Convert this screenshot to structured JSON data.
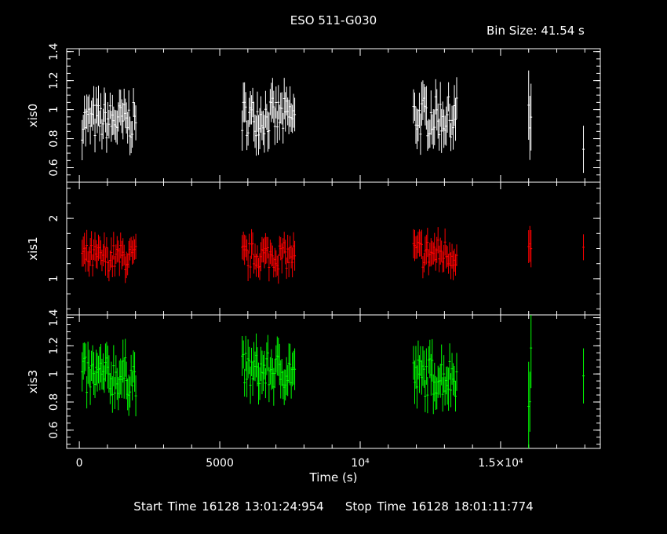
{
  "title": "ESO 511-G030",
  "bin_size": "Bin Size: 41.54 s",
  "start_time": "Start Time 16128 13:01:24:954",
  "stop_time": "Stop Time 16128 18:01:11:774",
  "colors": {
    "background": "#000000",
    "axes": "#ffffff",
    "xis0": "#ffffff",
    "xis1": "#ff0000",
    "xis3": "#00ff00"
  },
  "chart_data": {
    "type": "scatter",
    "xlabel": "Time (s)",
    "xlim": [
      -450,
      18550
    ],
    "x_ticks": [
      {
        "value": 0,
        "label": "0"
      },
      {
        "value": 5000,
        "label": "5000"
      },
      {
        "value": 10000,
        "label": "10⁴"
      },
      {
        "value": 15000,
        "label": "1.5×10⁴"
      }
    ],
    "panels": [
      {
        "name": "xis0",
        "ylabel": "xis0",
        "ylim": [
          0.5,
          1.42
        ],
        "yticks": [
          0.6,
          0.8,
          1.0,
          1.2,
          1.4
        ],
        "ytick_labels": [
          "0.6",
          "0.8",
          "1",
          "1.2",
          "1.4"
        ],
        "color": "#ffffff",
        "segments": [
          {
            "start": 100,
            "end": 2030,
            "mean": 0.92,
            "amp": 0.13,
            "err": 0.11
          },
          {
            "start": 5800,
            "end": 7700,
            "mean": 0.95,
            "amp": 0.13,
            "err": 0.11
          },
          {
            "start": 11900,
            "end": 13450,
            "mean": 0.95,
            "amp": 0.14,
            "err": 0.12
          },
          {
            "start": 16000,
            "end": 16110,
            "mean": 0.95,
            "amp": 0.25,
            "err": 0.22
          },
          {
            "start": 17950,
            "end": 17990,
            "mean": 0.72,
            "amp": 0.05,
            "err": 0.14
          }
        ]
      },
      {
        "name": "xis1",
        "ylabel": "xis1",
        "ylim": [
          0.4,
          2.6
        ],
        "yticks": [
          1,
          2
        ],
        "ytick_labels": [
          "1",
          "2"
        ],
        "color": "#ff0000",
        "segments": [
          {
            "start": 100,
            "end": 2030,
            "mean": 1.35,
            "amp": 0.22,
            "err": 0.2
          },
          {
            "start": 5800,
            "end": 7700,
            "mean": 1.38,
            "amp": 0.22,
            "err": 0.2
          },
          {
            "start": 11900,
            "end": 13450,
            "mean": 1.42,
            "amp": 0.25,
            "err": 0.2
          },
          {
            "start": 16000,
            "end": 16110,
            "mean": 1.5,
            "amp": 0.15,
            "err": 0.25
          },
          {
            "start": 17950,
            "end": 17990,
            "mean": 1.3,
            "amp": 0.6,
            "err": 0.25
          }
        ]
      },
      {
        "name": "xis3",
        "ylabel": "xis3",
        "ylim": [
          0.47,
          1.42
        ],
        "yticks": [
          0.6,
          0.8,
          1.0,
          1.2,
          1.4
        ],
        "ytick_labels": [
          "0.6",
          "0.8",
          "1",
          "1.2",
          "1.4"
        ],
        "color": "#00ff00",
        "segments": [
          {
            "start": 100,
            "end": 2030,
            "mean": 0.98,
            "amp": 0.14,
            "err": 0.12
          },
          {
            "start": 5800,
            "end": 7700,
            "mean": 1.02,
            "amp": 0.13,
            "err": 0.12
          },
          {
            "start": 11900,
            "end": 13450,
            "mean": 0.98,
            "amp": 0.14,
            "err": 0.12
          },
          {
            "start": 16000,
            "end": 16110,
            "mean": 1.05,
            "amp": 0.3,
            "err": 0.25
          },
          {
            "start": 17950,
            "end": 17990,
            "mean": 0.95,
            "amp": 0.1,
            "err": 0.18
          }
        ]
      }
    ]
  }
}
